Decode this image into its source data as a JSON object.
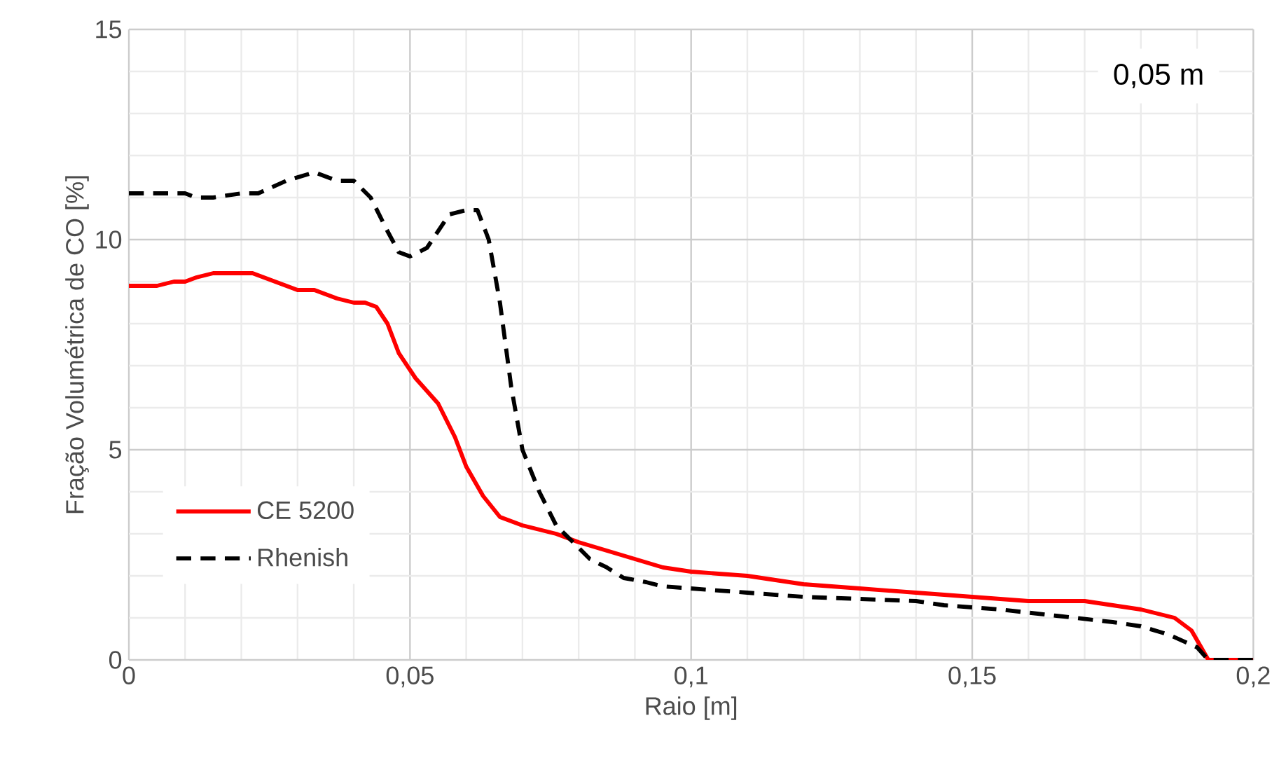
{
  "chart_data": {
    "type": "line",
    "xlabel": "Raio [m]",
    "ylabel": "Fração Volumétrica de CO [%]",
    "annotations": [
      "0,05 m"
    ],
    "xlim": [
      0,
      0.2
    ],
    "ylim": [
      0,
      15
    ],
    "xticks": [
      0,
      {
        "value": 0.05,
        "label": "0,05"
      },
      {
        "value": 0.1,
        "label": "0,1"
      },
      {
        "value": 0.15,
        "label": "0,15"
      },
      {
        "value": 0.2,
        "label": "0,2"
      }
    ],
    "yticks": [
      0,
      5,
      10,
      15
    ],
    "grid": true,
    "legend": "bottom left",
    "marker": "none",
    "series": [
      {
        "name": "CE 5200",
        "color": "#ff0000",
        "line_style": "solid",
        "x": [
          0,
          0.005,
          0.008,
          0.01,
          0.012,
          0.015,
          0.022,
          0.03,
          0.033,
          0.037,
          0.04,
          0.042,
          0.044,
          0.046,
          0.048,
          0.051,
          0.055,
          0.058,
          0.06,
          0.063,
          0.066,
          0.07,
          0.073,
          0.076,
          0.08,
          0.085,
          0.09,
          0.095,
          0.1,
          0.11,
          0.12,
          0.13,
          0.14,
          0.15,
          0.16,
          0.17,
          0.18,
          0.183,
          0.186,
          0.189,
          0.192,
          0.2
        ],
        "values": [
          8.9,
          8.9,
          9.0,
          9.0,
          9.1,
          9.2,
          9.2,
          8.8,
          8.8,
          8.6,
          8.5,
          8.5,
          8.4,
          8.0,
          7.3,
          6.7,
          6.1,
          5.3,
          4.6,
          3.9,
          3.4,
          3.2,
          3.1,
          3.0,
          2.8,
          2.6,
          2.4,
          2.2,
          2.1,
          2.0,
          1.8,
          1.7,
          1.6,
          1.5,
          1.4,
          1.4,
          1.2,
          1.1,
          1.0,
          0.7,
          0.0,
          0.0
        ]
      },
      {
        "name": "Rhenish",
        "color": "#000000",
        "line_style": "dashed",
        "x": [
          0,
          0.01,
          0.012,
          0.015,
          0.02,
          0.023,
          0.028,
          0.033,
          0.037,
          0.04,
          0.043,
          0.046,
          0.048,
          0.05,
          0.053,
          0.057,
          0.06,
          0.062,
          0.064,
          0.066,
          0.068,
          0.07,
          0.073,
          0.076,
          0.079,
          0.082,
          0.085,
          0.088,
          0.092,
          0.095,
          0.1,
          0.11,
          0.12,
          0.13,
          0.14,
          0.145,
          0.155,
          0.165,
          0.175,
          0.18,
          0.185,
          0.19,
          0.192,
          0.2
        ],
        "values": [
          11.1,
          11.1,
          11.0,
          11.0,
          11.1,
          11.1,
          11.4,
          11.6,
          11.4,
          11.4,
          11.0,
          10.2,
          9.7,
          9.6,
          9.8,
          10.6,
          10.7,
          10.7,
          10.0,
          8.5,
          6.5,
          5.0,
          4.0,
          3.2,
          2.8,
          2.4,
          2.2,
          1.95,
          1.85,
          1.75,
          1.7,
          1.6,
          1.5,
          1.45,
          1.4,
          1.3,
          1.2,
          1.05,
          0.9,
          0.8,
          0.6,
          0.3,
          0.0,
          0.0
        ]
      }
    ]
  }
}
